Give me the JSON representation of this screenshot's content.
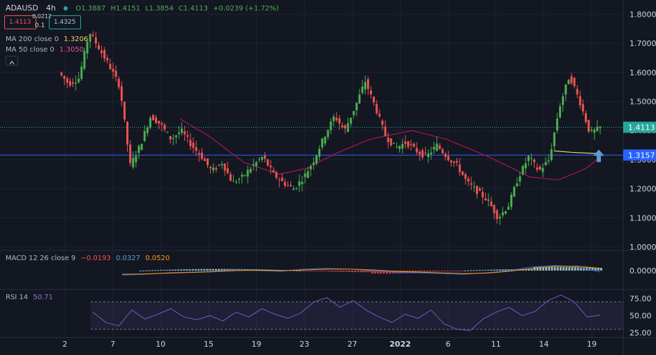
{
  "header": {
    "symbol": "ADAUSD",
    "interval": "4h",
    "ohlc_open": "O1.3887",
    "ohlc_high": "H1.4151",
    "ohlc_low": "L1.3854",
    "ohlc_close": "C1.4113",
    "change": "+0.0239 (+1.72%)",
    "bid": "1.4113",
    "spread_top": "0.0212",
    "spread_bottom": "0.1",
    "ask": "1.4325",
    "ma200_label": "MA 200 close 0",
    "ma200_value": "1.3206",
    "ma50_label": "MA 50 close 0",
    "ma50_value": "1.3050",
    "collapse_icon": "caret-up-icon"
  },
  "macd_header": {
    "label": "MACD 12 26 close 9",
    "v1": "−0.0193",
    "v2": "0.0327",
    "v3": "0.0520"
  },
  "rsi_header": {
    "label": "RSI 14",
    "value": "50.71"
  },
  "price_tags": {
    "last_price": "1.4113",
    "horizontal_line": "1.3157"
  },
  "colors": {
    "up": "#26a69a",
    "up_candle": "#4caf50",
    "down": "#ef5350",
    "ma200": "#f9d16b",
    "ma50": "#ad1457",
    "hline": "#2962ff",
    "macd": "#2962ff",
    "signal": "#ff9800",
    "rsi": "#7e57c2",
    "arrow": "#5b9bd5"
  },
  "chart_data": [
    {
      "type": "candlestick",
      "title": "ADAUSD 4h",
      "x_ticks": [
        "2",
        "7",
        "10",
        "15",
        "19",
        "23",
        "27",
        "2022",
        "6",
        "11",
        "14",
        "19"
      ],
      "y_ticks": [
        "1.8000",
        "1.7000",
        "1.6000",
        "1.5000",
        "1.4000",
        "1.3000",
        "1.2000",
        "1.1000",
        "1.0000"
      ],
      "ylim": [
        1.0,
        1.82
      ],
      "series_points": [
        [
          "2",
          1.6
        ],
        [
          "2",
          1.56
        ],
        [
          "3",
          1.58
        ],
        [
          "4",
          1.74
        ],
        [
          "4",
          1.68
        ],
        [
          "5",
          1.62
        ],
        [
          "5",
          1.55
        ],
        [
          "7",
          1.28
        ],
        [
          "7",
          1.35
        ],
        [
          "8",
          1.45
        ],
        [
          "8",
          1.42
        ],
        [
          "9",
          1.37
        ],
        [
          "10",
          1.4
        ],
        [
          "10",
          1.35
        ],
        [
          "11",
          1.31
        ],
        [
          "12",
          1.26
        ],
        [
          "13",
          1.29
        ],
        [
          "14",
          1.22
        ],
        [
          "15",
          1.24
        ],
        [
          "16",
          1.28
        ],
        [
          "16",
          1.31
        ],
        [
          "17",
          1.25
        ],
        [
          "18",
          1.22
        ],
        [
          "19",
          1.2
        ],
        [
          "20",
          1.24
        ],
        [
          "21",
          1.3
        ],
        [
          "22",
          1.38
        ],
        [
          "23",
          1.45
        ],
        [
          "24",
          1.4
        ],
        [
          "25",
          1.48
        ],
        [
          "27",
          1.57
        ],
        [
          "28",
          1.48
        ],
        [
          "29",
          1.38
        ],
        [
          "30",
          1.34
        ],
        [
          "31",
          1.36
        ],
        [
          "2022",
          1.33
        ],
        [
          "2",
          1.31
        ],
        [
          "3",
          1.35
        ],
        [
          "4",
          1.31
        ],
        [
          "5",
          1.28
        ],
        [
          "6",
          1.22
        ],
        [
          "7",
          1.19
        ],
        [
          "8",
          1.16
        ],
        [
          "10",
          1.1
        ],
        [
          "11",
          1.14
        ],
        [
          "12",
          1.24
        ],
        [
          "13",
          1.31
        ],
        [
          "14",
          1.26
        ],
        [
          "15",
          1.3
        ],
        [
          "16",
          1.48
        ],
        [
          "17",
          1.59
        ],
        [
          "18",
          1.5
        ],
        [
          "19",
          1.39
        ],
        [
          "19",
          1.41
        ]
      ],
      "ma200_last": 1.3206,
      "ma50_last": 1.305,
      "horizontal_line": 1.3157,
      "last_price": 1.4113
    },
    {
      "type": "line",
      "title": "MACD 12 26 close 9",
      "y_ticks": [
        "0.0000"
      ],
      "series": [
        {
          "name": "MACD",
          "values": [
            -0.06,
            -0.05,
            -0.03,
            -0.02,
            -0.01,
            0.01,
            0.0,
            -0.01,
            0.02,
            0.03,
            0.02,
            0.0,
            -0.02,
            -0.03,
            -0.04,
            -0.05,
            -0.03,
            0.0,
            0.05,
            0.07,
            0.05,
            -0.0193
          ]
        },
        {
          "name": "Signal",
          "values": [
            -0.05,
            -0.045,
            -0.035,
            -0.025,
            -0.015,
            0.0,
            0.005,
            0.0,
            0.01,
            0.02,
            0.02,
            0.01,
            -0.01,
            -0.02,
            -0.03,
            -0.04,
            -0.035,
            -0.01,
            0.03,
            0.06,
            0.06,
            0.0327
          ]
        }
      ],
      "histogram_last": 0.052
    },
    {
      "type": "line",
      "title": "RSI 14",
      "y_ticks": [
        "75.00",
        "50.00",
        "25.00"
      ],
      "ylim": [
        20,
        85
      ],
      "band": [
        30,
        70
      ],
      "series": [
        {
          "name": "RSI",
          "values": [
            55,
            40,
            35,
            58,
            45,
            52,
            60,
            48,
            44,
            50,
            42,
            55,
            48,
            60,
            52,
            46,
            54,
            70,
            76,
            62,
            72,
            58,
            48,
            40,
            52,
            46,
            58,
            38,
            30,
            28,
            45,
            55,
            62,
            50,
            56,
            72,
            80,
            70,
            48,
            50.71
          ]
        }
      ],
      "last": 50.71
    }
  ]
}
